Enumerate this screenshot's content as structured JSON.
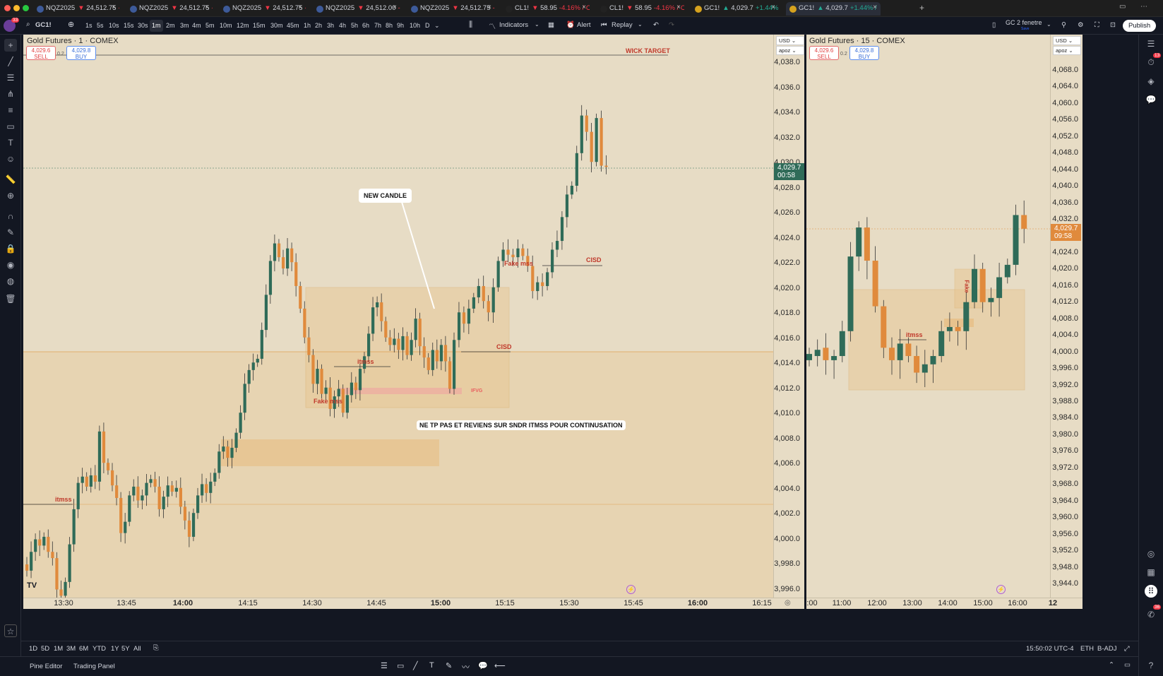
{
  "tabs": [
    {
      "symbol": "NQZ2025",
      "price": "24,512.75",
      "change": "-",
      "dir": "down"
    },
    {
      "symbol": "NQZ2025",
      "price": "24,512.75",
      "change": "-0",
      "dir": "down"
    },
    {
      "symbol": "NQZ2025",
      "price": "24,512.75",
      "change": "-",
      "dir": "down"
    },
    {
      "symbol": "NQZ2025",
      "price": "24,512.00",
      "change": "-",
      "dir": "down"
    },
    {
      "symbol": "NQZ2025",
      "price": "24,512.75",
      "change": "-",
      "dir": "down"
    },
    {
      "symbol": "CL1!",
      "price": "58.95",
      "change": "-4.16% / C",
      "dir": "down"
    },
    {
      "symbol": "CL1!",
      "price": "58.95",
      "change": "-4.16% / C",
      "dir": "down"
    },
    {
      "symbol": "GC1!",
      "price": "4,029.7",
      "change": "+1.44% / ",
      "dir": "up"
    },
    {
      "symbol": "GC1!",
      "price": "4,029.7",
      "change": "+1.44% / ",
      "dir": "up"
    }
  ],
  "toolbar": {
    "avatar_badge": "33",
    "symbol": "GC1!",
    "timeframes": [
      "1s",
      "5s",
      "10s",
      "15s",
      "30s",
      "1m",
      "2m",
      "3m",
      "4m",
      "5m",
      "10m",
      "12m",
      "15m",
      "30m",
      "45m",
      "1h",
      "2h",
      "3h",
      "4h",
      "5h",
      "6h",
      "7h",
      "8h",
      "9h",
      "10h",
      "D"
    ],
    "active_timeframe": "1m",
    "indicators_label": "Indicators",
    "alert_label": "Alert",
    "replay_label": "Replay",
    "layout_name": "GC 2 fenetre",
    "layout_sub": "Save",
    "publish_label": "Publish"
  },
  "left_chart": {
    "title": "Gold Futures · 1 · COMEX",
    "sell_price": "4,029.6",
    "sell_label": "SELL",
    "buy_price": "4,029.8",
    "buy_label": "BUY",
    "spread": "0.2",
    "currency": "USD",
    "currency2": "apoz",
    "price_tag": "4,029.7",
    "price_timer": "00:58",
    "y_labels": [
      "4,038.0",
      "4,036.0",
      "4,034.0",
      "4,032.0",
      "4,030.0",
      "4,028.0",
      "4,026.0",
      "4,024.0",
      "4,022.0",
      "4,020.0",
      "4,018.0",
      "4,016.0",
      "4,014.0",
      "4,012.0",
      "4,010.0",
      "4,008.0",
      "4,006.0",
      "4,004.0",
      "4,002.0",
      "4,000.0",
      "3,998.0",
      "3,996.0"
    ],
    "x_labels": [
      "13:30",
      "13:45",
      "14:00",
      "14:15",
      "14:30",
      "14:45",
      "15:00",
      "15:15",
      "15:30",
      "15:45",
      "16:00",
      "16:15"
    ],
    "annotations": {
      "wick_target": "WICK TARGET",
      "new_candle": "NEW CANDLE",
      "cisd_1": "CISD",
      "cisd_2": "CISD",
      "fake_mss_1": "Fake mss",
      "fake_mss_2": "Fake mss",
      "itmss_1": "itmss",
      "itmss_2": "itmss",
      "ifvg": "IFVG",
      "note": "NE TP PAS ET REVIENS SUR SNDR ITMSS POUR CONTINUSATION"
    }
  },
  "right_chart": {
    "title": "Gold Futures · 15 · COMEX",
    "sell_price": "4,029.6",
    "sell_label": "SELL",
    "buy_price": "4,029.8",
    "buy_label": "BUY",
    "spread": "0.2",
    "currency": "USD",
    "currency2": "apoz",
    "price_tag": "4,029.7",
    "price_timer": "09:58",
    "y_labels": [
      "4,068.0",
      "4,064.0",
      "4,060.0",
      "4,056.0",
      "4,052.0",
      "4,048.0",
      "4,044.0",
      "4,040.0",
      "4,036.0",
      "4,032.0",
      "4,028.0",
      "4,024.0",
      "4,020.0",
      "4,016.0",
      "4,012.0",
      "4,008.0",
      "4,004.0",
      "4,000.0",
      "3,996.0",
      "3,992.0",
      "3,988.0",
      "3,984.0",
      "3,980.0",
      "3,976.0",
      "3,972.0",
      "3,968.0",
      "3,964.0",
      "3,960.0",
      "3,956.0",
      "3,952.0",
      "3,948.0",
      "3,944.0"
    ],
    "x_labels": [
      ":00",
      "11:00",
      "12:00",
      "13:00",
      "14:00",
      "15:00",
      "16:00",
      "12"
    ],
    "annotations": {
      "itmss": "itmss",
      "fake": "Fake"
    }
  },
  "bottom": {
    "ranges": [
      "1D",
      "5D",
      "1M",
      "3M",
      "6M",
      "YTD",
      "1Y",
      "5Y",
      "All"
    ],
    "clock": "15:50:02 UTC-4",
    "session": "ETH",
    "adj": "B-ADJ",
    "pine_editor": "Pine Editor",
    "trading_panel": "Trading Panel"
  },
  "right_badges": {
    "alerts": "13",
    "notif": "36"
  },
  "colors": {
    "bg": "#e7dcc5",
    "up": "#2f6b58",
    "down": "#e08a3c",
    "zone": "#e8c590",
    "accent_red": "#c0392b"
  }
}
